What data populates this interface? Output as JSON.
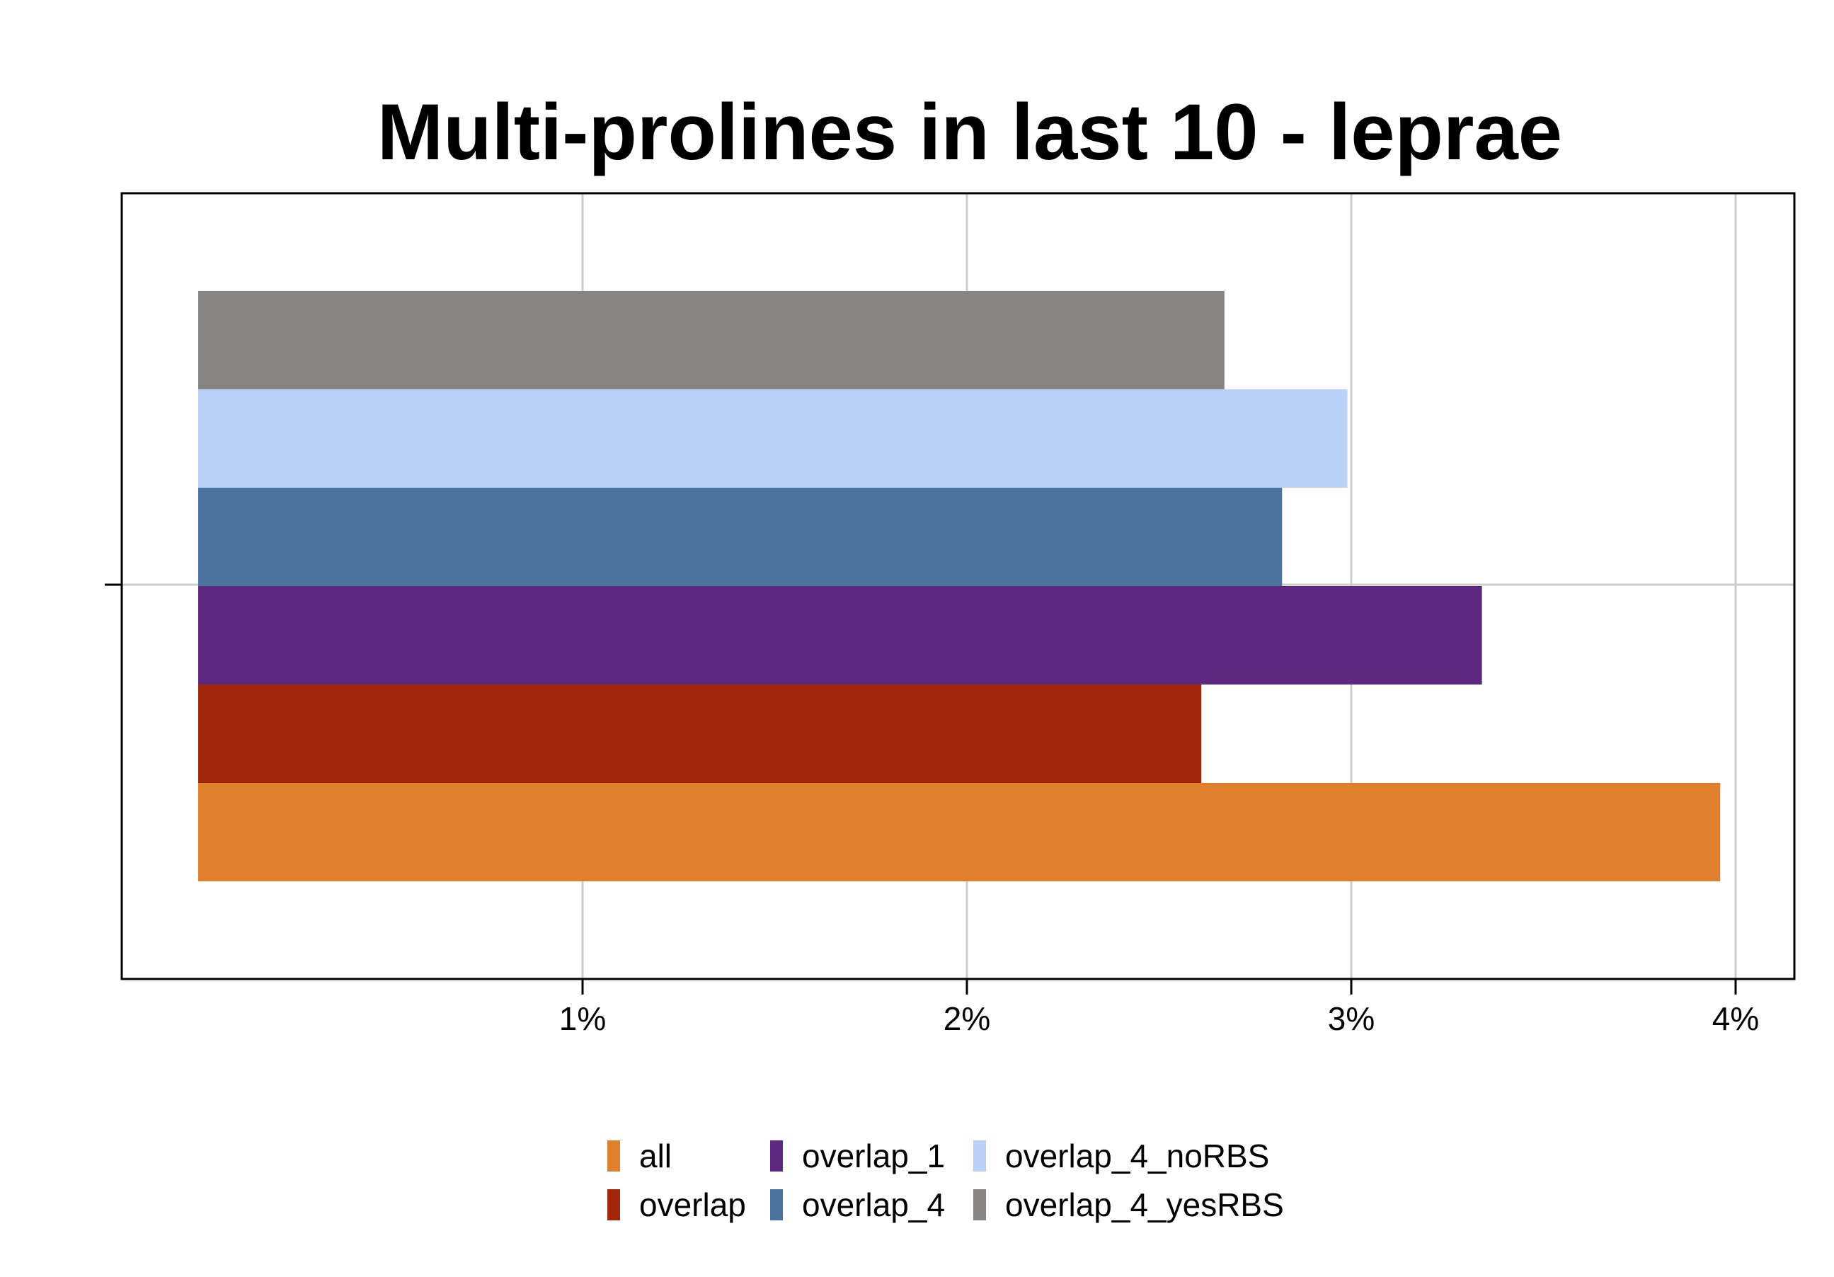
{
  "chart_data": {
    "type": "bar",
    "orientation": "horizontal",
    "title": "Multi-prolines in last 10 - leprae",
    "xlabel": "",
    "ylabel": "",
    "xlim": [
      0,
      4.15
    ],
    "x_ticks": [
      1,
      2,
      3,
      4
    ],
    "x_tick_labels": [
      "1%",
      "2%",
      "3%",
      "4%"
    ],
    "y_ticks": [
      ""
    ],
    "grid": true,
    "legend_position": "bottom",
    "series": [
      {
        "name": "all",
        "value": 3.96,
        "color": "#E07F2C"
      },
      {
        "name": "overlap",
        "value": 2.61,
        "color": "#A1260B"
      },
      {
        "name": "overlap_1",
        "value": 3.34,
        "color": "#5E2880"
      },
      {
        "name": "overlap_4",
        "value": 2.82,
        "color": "#4A739D"
      },
      {
        "name": "overlap_4_noRBS",
        "value": 2.99,
        "color": "#BBD0F8"
      },
      {
        "name": "overlap_4_yesRBS",
        "value": 2.67,
        "color": "#868583"
      }
    ]
  }
}
